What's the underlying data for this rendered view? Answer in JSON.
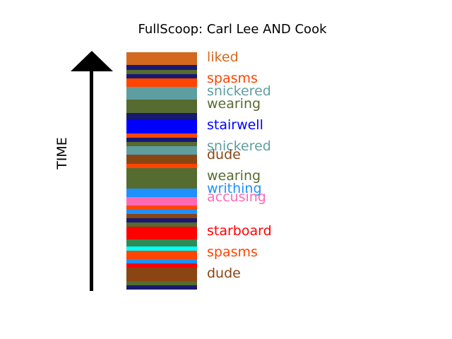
{
  "title": "FullScoop: Carl Lee AND Cook",
  "axis_label": "TIME",
  "stripes": [
    {
      "color": "#D2691E",
      "from": 0.0,
      "to": 0.055
    },
    {
      "color": "#191970",
      "from": 0.055,
      "to": 0.073
    },
    {
      "color": "#556B2F",
      "from": 0.073,
      "to": 0.092
    },
    {
      "color": "#191970",
      "from": 0.092,
      "to": 0.11
    },
    {
      "color": "#FF4500",
      "from": 0.11,
      "to": 0.146
    },
    {
      "color": "#5F9EA0",
      "from": 0.146,
      "to": 0.2
    },
    {
      "color": "#556B2F",
      "from": 0.2,
      "to": 0.255
    },
    {
      "color": "#191970",
      "from": 0.255,
      "to": 0.282
    },
    {
      "color": "#0000FF",
      "from": 0.282,
      "to": 0.342
    },
    {
      "color": "#FF4500",
      "from": 0.342,
      "to": 0.36
    },
    {
      "color": "#191970",
      "from": 0.36,
      "to": 0.378
    },
    {
      "color": "#556B2F",
      "from": 0.378,
      "to": 0.396
    },
    {
      "color": "#5F9EA0",
      "from": 0.396,
      "to": 0.433
    },
    {
      "color": "#8B4513",
      "from": 0.433,
      "to": 0.469
    },
    {
      "color": "#FF4500",
      "from": 0.469,
      "to": 0.487
    },
    {
      "color": "#556B2F",
      "from": 0.487,
      "to": 0.573
    },
    {
      "color": "#1E90FF",
      "from": 0.573,
      "to": 0.61
    },
    {
      "color": "#FF69B4",
      "from": 0.61,
      "to": 0.646
    },
    {
      "color": "#FF4500",
      "from": 0.646,
      "to": 0.664
    },
    {
      "color": "#1E90FF",
      "from": 0.664,
      "to": 0.682
    },
    {
      "color": "#8B4513",
      "from": 0.682,
      "to": 0.7
    },
    {
      "color": "#191970",
      "from": 0.7,
      "to": 0.718
    },
    {
      "color": "#556B2F",
      "from": 0.718,
      "to": 0.736
    },
    {
      "color": "#FF0000",
      "from": 0.736,
      "to": 0.79
    },
    {
      "color": "#2E8B57",
      "from": 0.79,
      "to": 0.818
    },
    {
      "color": "#00FFFF",
      "from": 0.818,
      "to": 0.836
    },
    {
      "color": "#FF4500",
      "from": 0.836,
      "to": 0.872
    },
    {
      "color": "#1E90FF",
      "from": 0.872,
      "to": 0.89
    },
    {
      "color": "#FF0000",
      "from": 0.89,
      "to": 0.908
    },
    {
      "color": "#8B4513",
      "from": 0.908,
      "to": 0.963
    },
    {
      "color": "#556B2F",
      "from": 0.963,
      "to": 0.981
    },
    {
      "color": "#191970",
      "from": 0.981,
      "to": 1.0
    }
  ],
  "words": [
    {
      "text": "liked",
      "color": "#D2691E"
    },
    {
      "text": "spasms",
      "color": "#FF4500"
    },
    {
      "text": "snickered",
      "color": "#5F9EA0"
    },
    {
      "text": "wearing",
      "color": "#556B2F"
    },
    {
      "text": "stairwell",
      "color": "#0000FF"
    },
    {
      "text": "snickered",
      "color": "#5F9EA0"
    },
    {
      "text": "dude",
      "color": "#8B4513"
    },
    {
      "text": "wearing",
      "color": "#556B2F"
    },
    {
      "text": "writhing",
      "color": "#1E90FF"
    },
    {
      "text": "accusing",
      "color": "#FF69B4"
    },
    {
      "text": "starboard",
      "color": "#FF0000"
    },
    {
      "text": "spasms",
      "color": "#FF4500"
    },
    {
      "text": "dude",
      "color": "#8B4513"
    }
  ]
}
